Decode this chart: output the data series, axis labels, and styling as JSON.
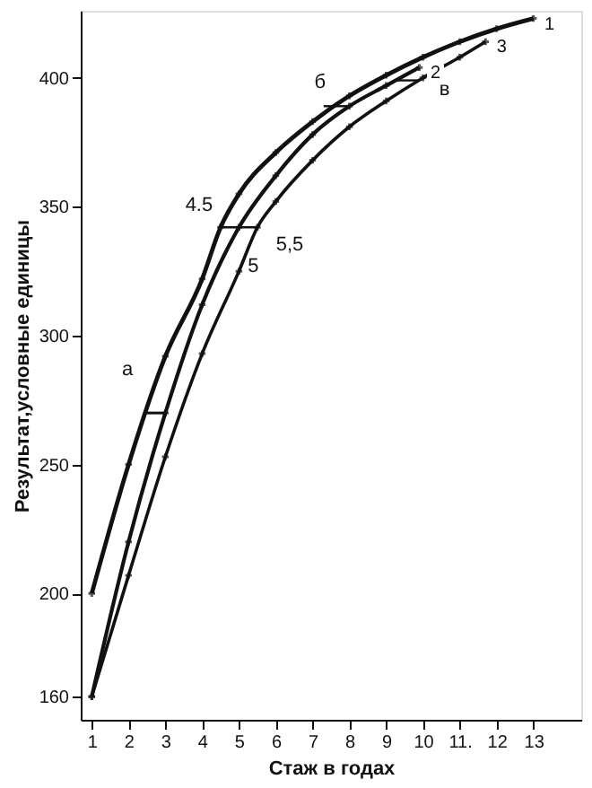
{
  "chart_data": {
    "type": "line",
    "xlabel": "Стаж в годах",
    "ylabel": "Результат,условные единицы",
    "xlim": [
      0.7,
      14.3
    ],
    "ylim": [
      151,
      426
    ],
    "xticks": [
      1,
      2,
      3,
      4,
      5,
      6,
      7,
      8,
      9,
      10,
      {
        "value": 11,
        "label": "11."
      },
      12,
      13
    ],
    "yticks": [
      160,
      200,
      250,
      300,
      350,
      400
    ],
    "grid": false,
    "line_style": "solid",
    "series": [
      {
        "name": "1",
        "color": "#111111",
        "marker": "cross",
        "x": [
          1,
          2,
          3,
          4,
          4.5,
          5,
          6,
          7,
          8,
          9,
          10,
          11,
          12,
          13
        ],
        "values": [
          200,
          250,
          292,
          322,
          342,
          355,
          371,
          383,
          393,
          401,
          408,
          414,
          419,
          423
        ]
      },
      {
        "name": "2",
        "color": "#111111",
        "marker": "cross",
        "x": [
          1,
          2,
          3,
          4,
          5,
          6,
          7,
          8,
          9,
          9.9
        ],
        "values": [
          160,
          220,
          270,
          312,
          342,
          362,
          378,
          389,
          397,
          404
        ]
      },
      {
        "name": "3",
        "color": "#111111",
        "marker": "cross",
        "x": [
          1,
          2,
          3,
          4,
          5,
          5.5,
          6,
          7,
          8,
          9,
          10,
          11,
          11.7
        ],
        "values": [
          160,
          207,
          253,
          293,
          325,
          342,
          352,
          368,
          381,
          391,
          400,
          408,
          414
        ]
      },
      {
        "color": "#111111",
        "marker": "none",
        "x": [
          2.5,
          3
        ],
        "values": [
          270,
          270
        ]
      },
      {
        "color": "#111111",
        "marker": "none",
        "x": [
          4.5,
          5.5
        ],
        "values": [
          342,
          342
        ]
      },
      {
        "color": "#111111",
        "marker": "none",
        "x": [
          7.3,
          8
        ],
        "values": [
          389,
          389
        ]
      },
      {
        "color": "#111111",
        "marker": "none",
        "x": [
          9.3,
          9.9
        ],
        "values": [
          399,
          399
        ]
      }
    ],
    "annotations": [
      {
        "text": "а",
        "x": 2.75,
        "y": 270
      },
      {
        "text": "4.5",
        "x": 4.5,
        "y": 342
      },
      {
        "text": "5",
        "x": 5,
        "y": 342
      },
      {
        "text": "5,5",
        "x": 5.5,
        "y": 342
      },
      {
        "text": "б",
        "x": 7.3,
        "y": 389
      },
      {
        "text": "в",
        "x": 9.9,
        "y": 399
      }
    ]
  }
}
